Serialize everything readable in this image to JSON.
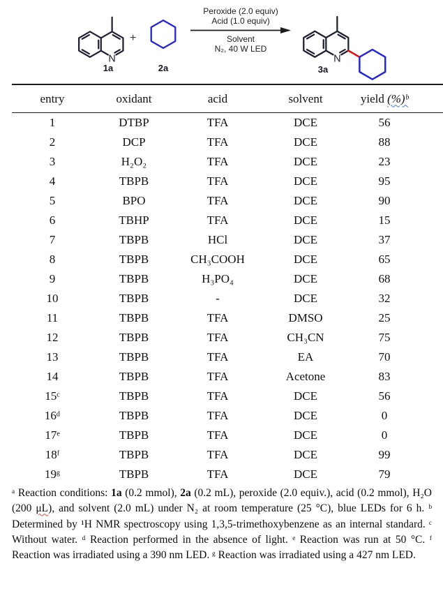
{
  "scheme": {
    "reactant1_label": "1a",
    "plus_sign": "+",
    "reactant2_label": "2a",
    "product_label": "3a",
    "nitrogen_label": "N",
    "conditions_line1": "Peroxide (2.0 equiv)",
    "conditions_line2": "Acid (1.0 equiv)",
    "conditions_line3": "Solvent",
    "conditions_line4": "N₂, 40 W LED",
    "colors": {
      "structure": "#1e1e30",
      "cyclohexane_blue": "#2424d8",
      "new_bond_red": "#df1414"
    }
  },
  "table": {
    "headers": [
      "entry",
      "oxidant",
      "acid",
      "solvent"
    ],
    "yield_header_prefix": "yield ",
    "yield_header_wavy": "(%)ᵇ",
    "rows": [
      [
        "1",
        "DTBP",
        "TFA",
        "DCE",
        "56"
      ],
      [
        "2",
        "DCP",
        "TFA",
        "DCE",
        "88"
      ],
      [
        "3",
        "H₂O₂",
        "TFA",
        "DCE",
        "23"
      ],
      [
        "4",
        "TBPB",
        "TFA",
        "DCE",
        "95"
      ],
      [
        "5",
        "BPO",
        "TFA",
        "DCE",
        "90"
      ],
      [
        "6",
        "TBHP",
        "TFA",
        "DCE",
        "15"
      ],
      [
        "7",
        "TBPB",
        "HCl",
        "DCE",
        "37"
      ],
      [
        "8",
        "TBPB",
        "CH₃COOH",
        "DCE",
        "65"
      ],
      [
        "9",
        "TBPB",
        "H₃PO₄",
        "DCE",
        "68"
      ],
      [
        "10",
        "TBPB",
        "-",
        "DCE",
        "32"
      ],
      [
        "11",
        "TBPB",
        "TFA",
        "DMSO",
        "25"
      ],
      [
        "12",
        "TBPB",
        "TFA",
        "CH₃CN",
        "75"
      ],
      [
        "13",
        "TBPB",
        "TFA",
        "EA",
        "70"
      ],
      [
        "14",
        "TBPB",
        "TFA",
        "Acetone",
        "83"
      ],
      [
        "15ᶜ",
        "TBPB",
        "TFA",
        "DCE",
        "56"
      ],
      [
        "16ᵈ",
        "TBPB",
        "TFA",
        "DCE",
        "0"
      ],
      [
        "17ᵉ",
        "TBPB",
        "TFA",
        "DCE",
        "0"
      ],
      [
        "18ᶠ",
        "TBPB",
        "TFA",
        "DCE",
        "99"
      ],
      [
        "19ᵍ",
        "TBPB",
        "TFA",
        "DCE",
        "79"
      ]
    ]
  },
  "footnotes": {
    "seg1": "ᵃ Reaction conditions: ",
    "bold1": "1a",
    "seg2": " (0.2 mmol), ",
    "bold2": "2a",
    "seg3": " (0.2 mL), peroxide (2.0 equiv.), acid (0.2 mmol), H₂O (200 ",
    "misspelled_unit": "μL",
    "seg4": "), and solvent (2.0 mL) under N₂ at room temperature (25 °C), blue LEDs for 6 h. ᵇ Determined by ¹H NMR spectroscopy using 1,3,5-trimethoxybenzene as an internal standard. ᶜ Without water. ᵈ Reaction performed in the absence of light. ᵉ Reaction was run at 50 °C. ᶠ Reaction was irradiated using a 390 nm LED. ᵍ Reaction was irradiated using a 427 nm LED."
  }
}
